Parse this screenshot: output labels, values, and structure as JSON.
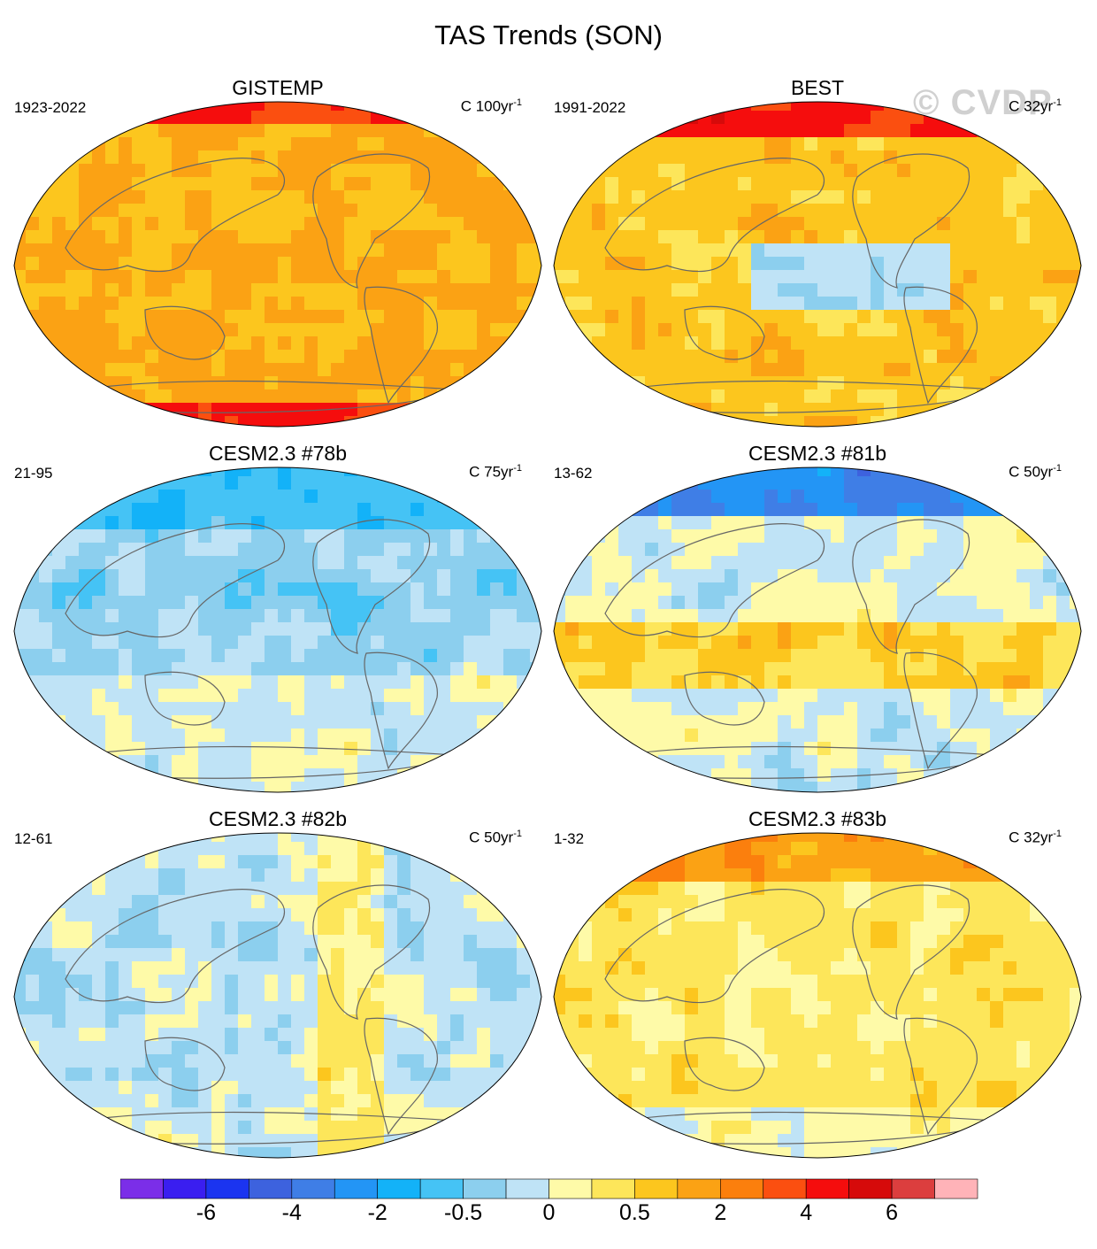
{
  "figure": {
    "title": "TAS Trends (SON)",
    "watermark": "© CVDP"
  },
  "panels": [
    {
      "name": "GISTEMP",
      "period": "1923-2022",
      "units": "C 100yr",
      "exp": "-1",
      "pattern": "gistemp"
    },
    {
      "name": "BEST",
      "period": "1991-2022",
      "units": "C 32yr",
      "exp": "-1",
      "pattern": "best"
    },
    {
      "name": "CESM2.3 #78b",
      "period": "21-95",
      "units": "C 75yr",
      "exp": "-1",
      "pattern": "m78"
    },
    {
      "name": "CESM2.3 #81b",
      "period": "13-62",
      "units": "C 50yr",
      "exp": "-1",
      "pattern": "m81"
    },
    {
      "name": "CESM2.3 #82b",
      "period": "12-61",
      "units": "C 50yr",
      "exp": "-1",
      "pattern": "m82"
    },
    {
      "name": "CESM2.3 #83b",
      "period": "1-32",
      "units": "C 32yr",
      "exp": "-1",
      "pattern": "m83"
    }
  ],
  "colorbar": {
    "colors": [
      "#7b2ee8",
      "#3a1ef0",
      "#1b34f0",
      "#3d62de",
      "#3f7ee6",
      "#2395f5",
      "#13b2f8",
      "#45c3f5",
      "#8ccfee",
      "#bfe3f6",
      "#fefaa8",
      "#fde65a",
      "#fcc61e",
      "#fba214",
      "#fb7f0d",
      "#fb4f10",
      "#f50d0d",
      "#d60a0a",
      "#dc3e3e",
      "#ffb3b8"
    ],
    "labels": [
      {
        "text": "-6",
        "boundary": 2
      },
      {
        "text": "-4",
        "boundary": 4
      },
      {
        "text": "-2",
        "boundary": 6
      },
      {
        "text": "-0.5",
        "boundary": 8
      },
      {
        "text": "0",
        "boundary": 10
      },
      {
        "text": "0.5",
        "boundary": 12
      },
      {
        "text": "2",
        "boundary": 14
      },
      {
        "text": "4",
        "boundary": 16
      },
      {
        "text": "6",
        "boundary": 18
      }
    ]
  }
}
